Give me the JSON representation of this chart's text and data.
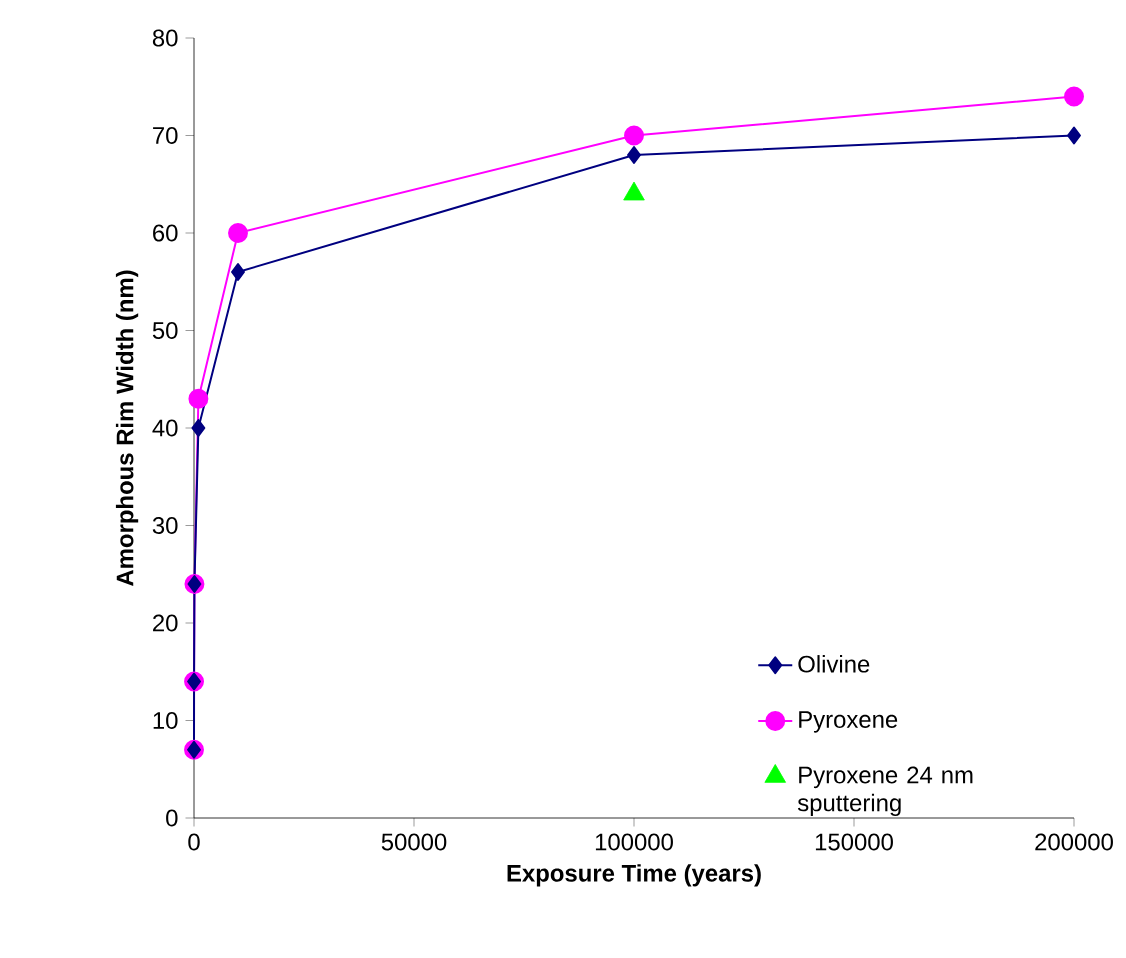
{
  "chart_data": {
    "type": "line",
    "xlabel": "Exposure Time (years)",
    "ylabel": "Amorphous Rim Width (nm)",
    "xlim": [
      0,
      200000
    ],
    "ylim": [
      0,
      80
    ],
    "xticks": [
      0,
      50000,
      100000,
      150000,
      200000
    ],
    "yticks": [
      0,
      10,
      20,
      30,
      40,
      50,
      60,
      70,
      80
    ],
    "legend": "bottom right",
    "grid": false,
    "series": [
      {
        "name": "Olivine",
        "color": "#000080",
        "marker": "diamond",
        "x": [
          1,
          10,
          100,
          1000,
          10000,
          100000,
          200000
        ],
        "values": [
          7,
          14,
          24,
          40,
          56,
          68,
          70
        ]
      },
      {
        "name": "Pyroxene",
        "color": "#ff00ff",
        "marker": "circle",
        "x": [
          1,
          10,
          100,
          1000,
          10000,
          100000,
          200000
        ],
        "values": [
          7,
          14,
          24,
          43,
          60,
          70,
          74
        ]
      },
      {
        "name": "Pyroxene 24 nm sputtering",
        "type": "scatter",
        "color": "#00ff00",
        "marker": "triangle",
        "x": [
          100000
        ],
        "values": [
          64
        ]
      }
    ]
  }
}
